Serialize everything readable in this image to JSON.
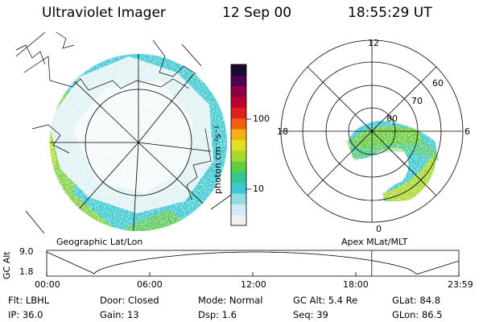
{
  "header": {
    "title": "Ultraviolet Imager",
    "date": "12 Sep 00",
    "time": "18:55:29 UT"
  },
  "left_panel": {
    "caption": "Geographic Lat/Lon"
  },
  "right_panel": {
    "caption": "Apex MLat/MLT",
    "mlt_labels": {
      "top": "12",
      "left": "18",
      "right": "6",
      "bottom": "0"
    },
    "lat_labels": [
      "80",
      "70",
      "60"
    ]
  },
  "colorbar": {
    "unit": "photon cm⁻²s⁻¹",
    "ticks": [
      "100",
      "10"
    ],
    "colors": [
      "#f0f0f0",
      "#d0ecf0",
      "#90dce0",
      "#3cc8d0",
      "#30c890",
      "#60cc40",
      "#a8d830",
      "#e0e020",
      "#f8b010",
      "#f06010",
      "#e02020",
      "#c00030",
      "#900040",
      "#500050",
      "#1a0a30"
    ]
  },
  "altitude_plot": {
    "ylabel": "GC Alt",
    "yticks": [
      "9.0",
      "1.8"
    ],
    "xticks": [
      "00:00",
      "06:00",
      "12:00",
      "18:00",
      "23:59"
    ],
    "current_time_marker": "18:55:29",
    "marker_color": "#cc0000"
  },
  "info": {
    "flt": "Flt: LBHL",
    "ip": "IP: 36.0",
    "door": "Door: Closed",
    "gain": "Gain: 13",
    "mode": "Mode: Normal",
    "dsp": "Dsp:  1.6",
    "gc_alt": "GC Alt: 5.4 Re",
    "seq": "Seq: 39",
    "glat": "GLat:  84.8",
    "glon": "GLon:  86.5"
  }
}
